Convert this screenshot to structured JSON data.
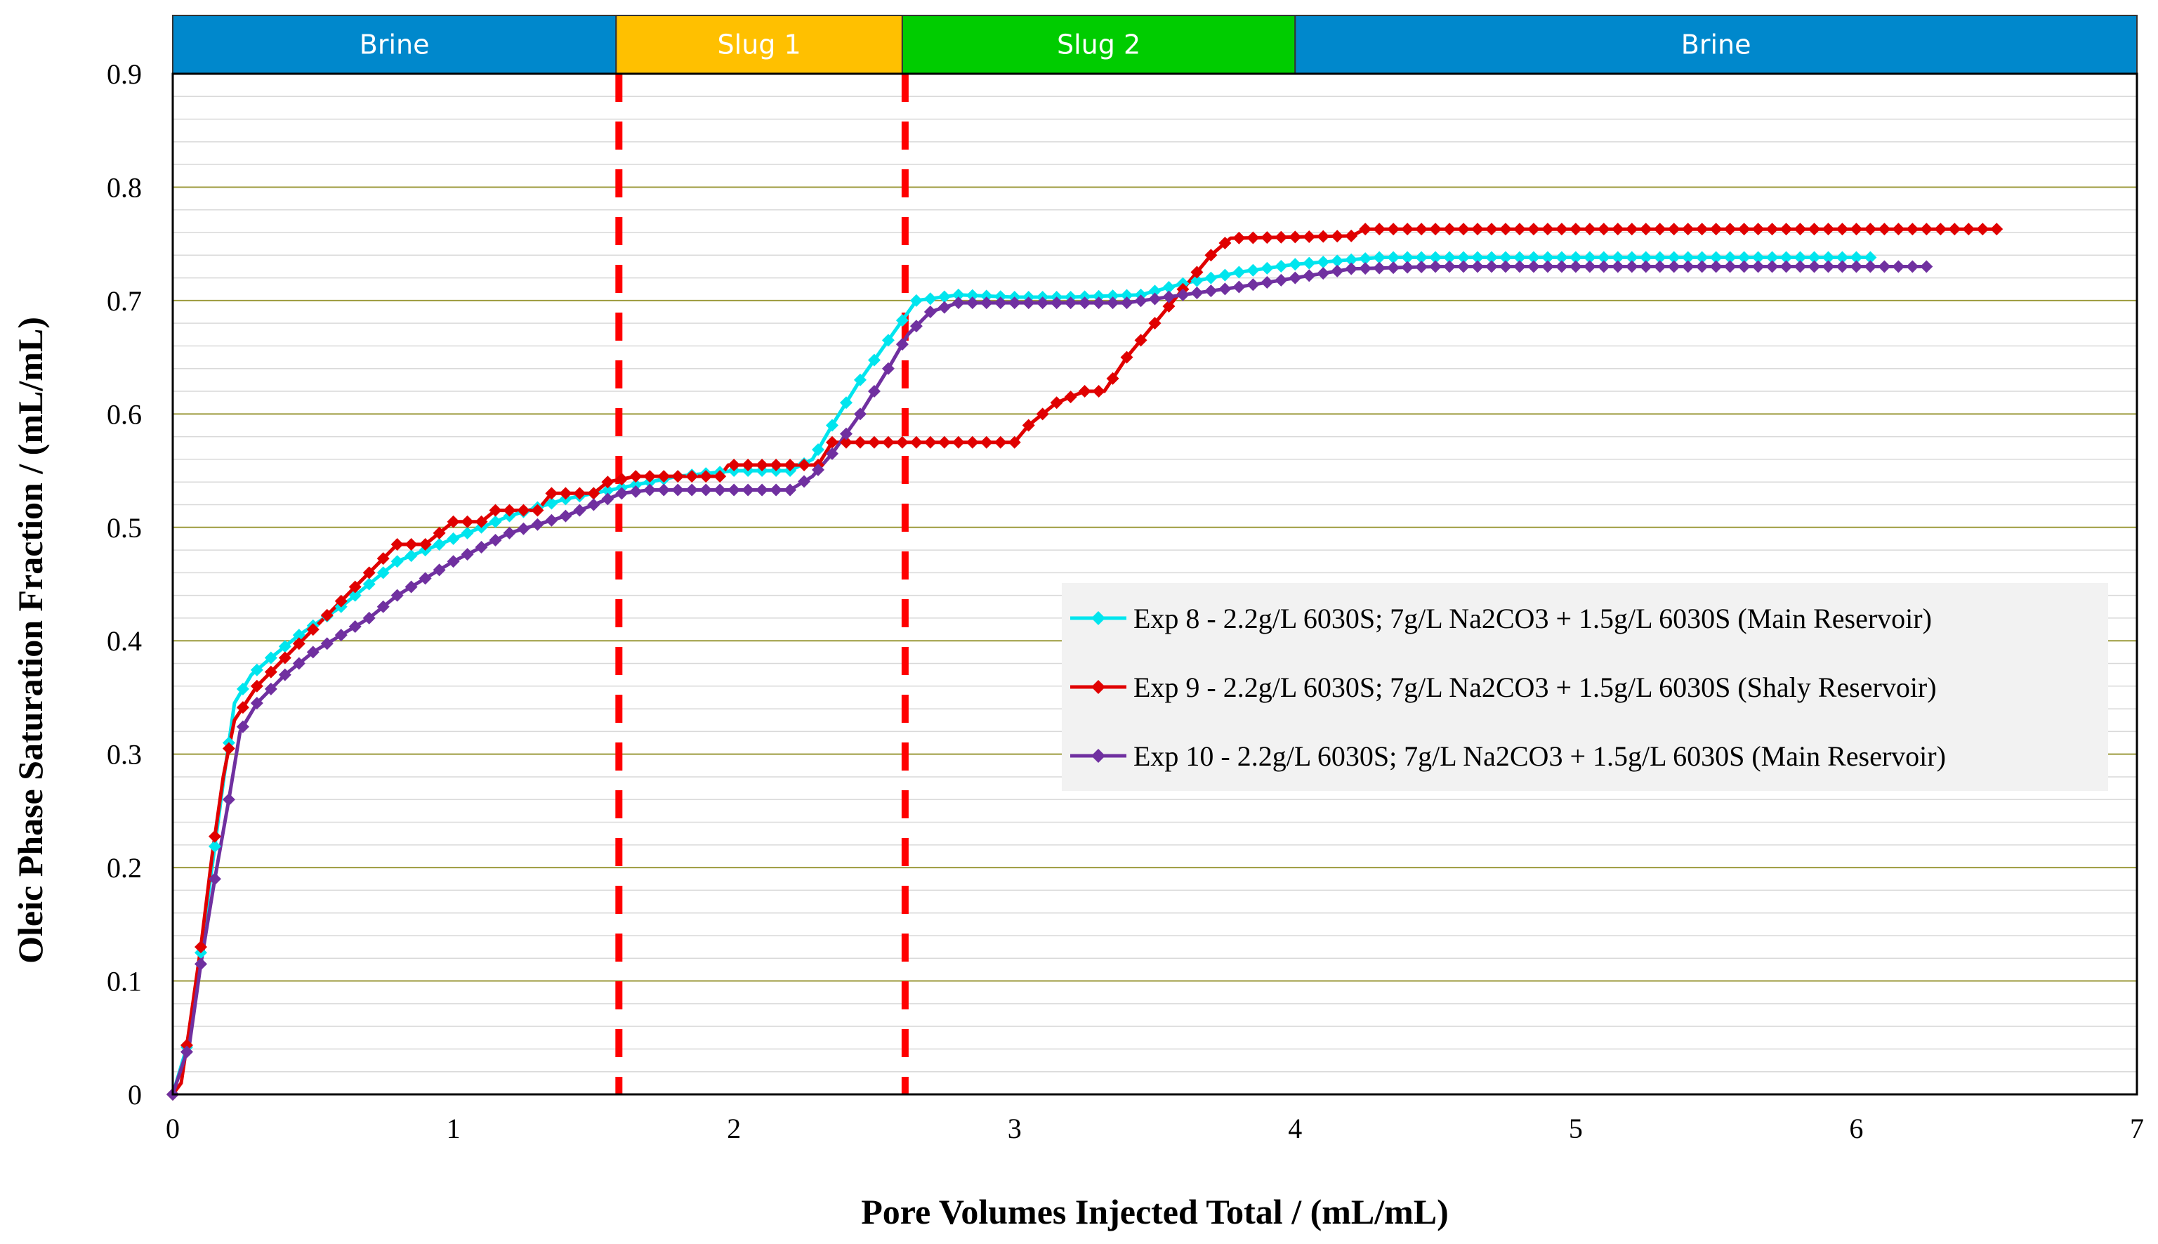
{
  "chart_data": {
    "type": "line",
    "xlabel": "Pore Volumes Injected Total / (mL/mL)",
    "ylabel": "Oleic Phase Saturation Fraction / (mL/mL)",
    "xlim": [
      0,
      7
    ],
    "ylim": [
      0,
      0.9
    ],
    "x_ticks": [
      "0",
      "1",
      "2",
      "3",
      "4",
      "5",
      "6",
      "7"
    ],
    "y_ticks": [
      "0",
      "0.1",
      "0.2",
      "0.3",
      "0.4",
      "0.5",
      "0.6",
      "0.7",
      "0.8",
      "0.9"
    ],
    "grid": "horizontal",
    "legend_position": "right-middle",
    "phases": [
      {
        "label": "Brine",
        "start": 0,
        "end": 1.58,
        "color": "#0088cc"
      },
      {
        "label": "Slug 1",
        "start": 1.58,
        "end": 2.6,
        "color": "#ffc000"
      },
      {
        "label": "Slug 2",
        "start": 2.6,
        "end": 4.0,
        "color": "#00cc00"
      },
      {
        "label": "Brine",
        "start": 4.0,
        "end": 7.0,
        "color": "#0088cc"
      }
    ],
    "dividers": [
      1.59,
      2.61
    ],
    "divider_color": "#ff0000",
    "series": [
      {
        "name": "Exp 8 - 2.2g/L 6030S; 7g/L Na2CO3 + 1.5g/L 6030S (Main Reservoir)",
        "color": "#00e5ee",
        "points": [
          [
            0,
            0
          ],
          [
            0.06,
            0.05
          ],
          [
            0.1,
            0.125
          ],
          [
            0.14,
            0.2
          ],
          [
            0.18,
            0.275
          ],
          [
            0.22,
            0.345
          ],
          [
            0.28,
            0.37
          ],
          [
            0.35,
            0.385
          ],
          [
            0.45,
            0.405
          ],
          [
            0.6,
            0.43
          ],
          [
            0.8,
            0.47
          ],
          [
            1.0,
            0.49
          ],
          [
            1.2,
            0.51
          ],
          [
            1.4,
            0.525
          ],
          [
            1.6,
            0.535
          ],
          [
            1.8,
            0.545
          ],
          [
            2.0,
            0.55
          ],
          [
            2.2,
            0.55
          ],
          [
            2.28,
            0.56
          ],
          [
            2.35,
            0.59
          ],
          [
            2.45,
            0.63
          ],
          [
            2.55,
            0.665
          ],
          [
            2.65,
            0.7
          ],
          [
            2.8,
            0.705
          ],
          [
            3.0,
            0.703
          ],
          [
            3.2,
            0.703
          ],
          [
            3.45,
            0.705
          ],
          [
            3.6,
            0.715
          ],
          [
            3.8,
            0.725
          ],
          [
            4.0,
            0.732
          ],
          [
            4.3,
            0.738
          ],
          [
            5.0,
            0.738
          ],
          [
            6.0,
            0.738
          ],
          [
            6.05,
            0.738
          ]
        ]
      },
      {
        "name": "Exp 9 - 2.2g/L 6030S; 7g/L Na2CO3 + 1.5g/L 6030S (Shaly Reservoir)",
        "color": "#e00000",
        "points": [
          [
            0,
            0
          ],
          [
            0.03,
            0.01
          ],
          [
            0.06,
            0.06
          ],
          [
            0.1,
            0.13
          ],
          [
            0.14,
            0.21
          ],
          [
            0.18,
            0.28
          ],
          [
            0.22,
            0.33
          ],
          [
            0.3,
            0.36
          ],
          [
            0.4,
            0.385
          ],
          [
            0.5,
            0.41
          ],
          [
            0.6,
            0.435
          ],
          [
            0.7,
            0.46
          ],
          [
            0.8,
            0.485
          ],
          [
            0.9,
            0.485
          ],
          [
            1.0,
            0.505
          ],
          [
            1.1,
            0.505
          ],
          [
            1.15,
            0.515
          ],
          [
            1.3,
            0.515
          ],
          [
            1.35,
            0.53
          ],
          [
            1.5,
            0.53
          ],
          [
            1.55,
            0.54
          ],
          [
            1.65,
            0.545
          ],
          [
            1.95,
            0.545
          ],
          [
            1.98,
            0.555
          ],
          [
            2.3,
            0.555
          ],
          [
            2.35,
            0.575
          ],
          [
            3.0,
            0.575
          ],
          [
            3.05,
            0.59
          ],
          [
            3.15,
            0.61
          ],
          [
            3.25,
            0.62
          ],
          [
            3.32,
            0.62
          ],
          [
            3.4,
            0.65
          ],
          [
            3.5,
            0.68
          ],
          [
            3.6,
            0.71
          ],
          [
            3.7,
            0.74
          ],
          [
            3.77,
            0.755
          ],
          [
            4.2,
            0.757
          ],
          [
            4.25,
            0.763
          ],
          [
            5.0,
            0.763
          ],
          [
            6.5,
            0.763
          ]
        ]
      },
      {
        "name": "Exp 10 - 2.2g/L 6030S; 7g/L Na2CO3 + 1.5g/L 6030S (Main Reservoir)",
        "color": "#7030a0",
        "points": [
          [
            0,
            0
          ],
          [
            0.06,
            0.045
          ],
          [
            0.1,
            0.115
          ],
          [
            0.15,
            0.19
          ],
          [
            0.2,
            0.26
          ],
          [
            0.24,
            0.32
          ],
          [
            0.3,
            0.345
          ],
          [
            0.4,
            0.37
          ],
          [
            0.5,
            0.39
          ],
          [
            0.6,
            0.405
          ],
          [
            0.7,
            0.42
          ],
          [
            0.8,
            0.44
          ],
          [
            0.9,
            0.455
          ],
          [
            1.0,
            0.47
          ],
          [
            1.2,
            0.495
          ],
          [
            1.4,
            0.51
          ],
          [
            1.5,
            0.52
          ],
          [
            1.6,
            0.53
          ],
          [
            1.7,
            0.533
          ],
          [
            2.0,
            0.533
          ],
          [
            2.2,
            0.533
          ],
          [
            2.28,
            0.545
          ],
          [
            2.35,
            0.565
          ],
          [
            2.45,
            0.6
          ],
          [
            2.55,
            0.64
          ],
          [
            2.62,
            0.67
          ],
          [
            2.7,
            0.69
          ],
          [
            2.8,
            0.698
          ],
          [
            3.0,
            0.698
          ],
          [
            3.4,
            0.698
          ],
          [
            3.6,
            0.705
          ],
          [
            3.8,
            0.712
          ],
          [
            4.0,
            0.72
          ],
          [
            4.2,
            0.728
          ],
          [
            4.5,
            0.73
          ],
          [
            5.0,
            0.73
          ],
          [
            6.0,
            0.73
          ],
          [
            6.25,
            0.73
          ]
        ]
      }
    ]
  }
}
